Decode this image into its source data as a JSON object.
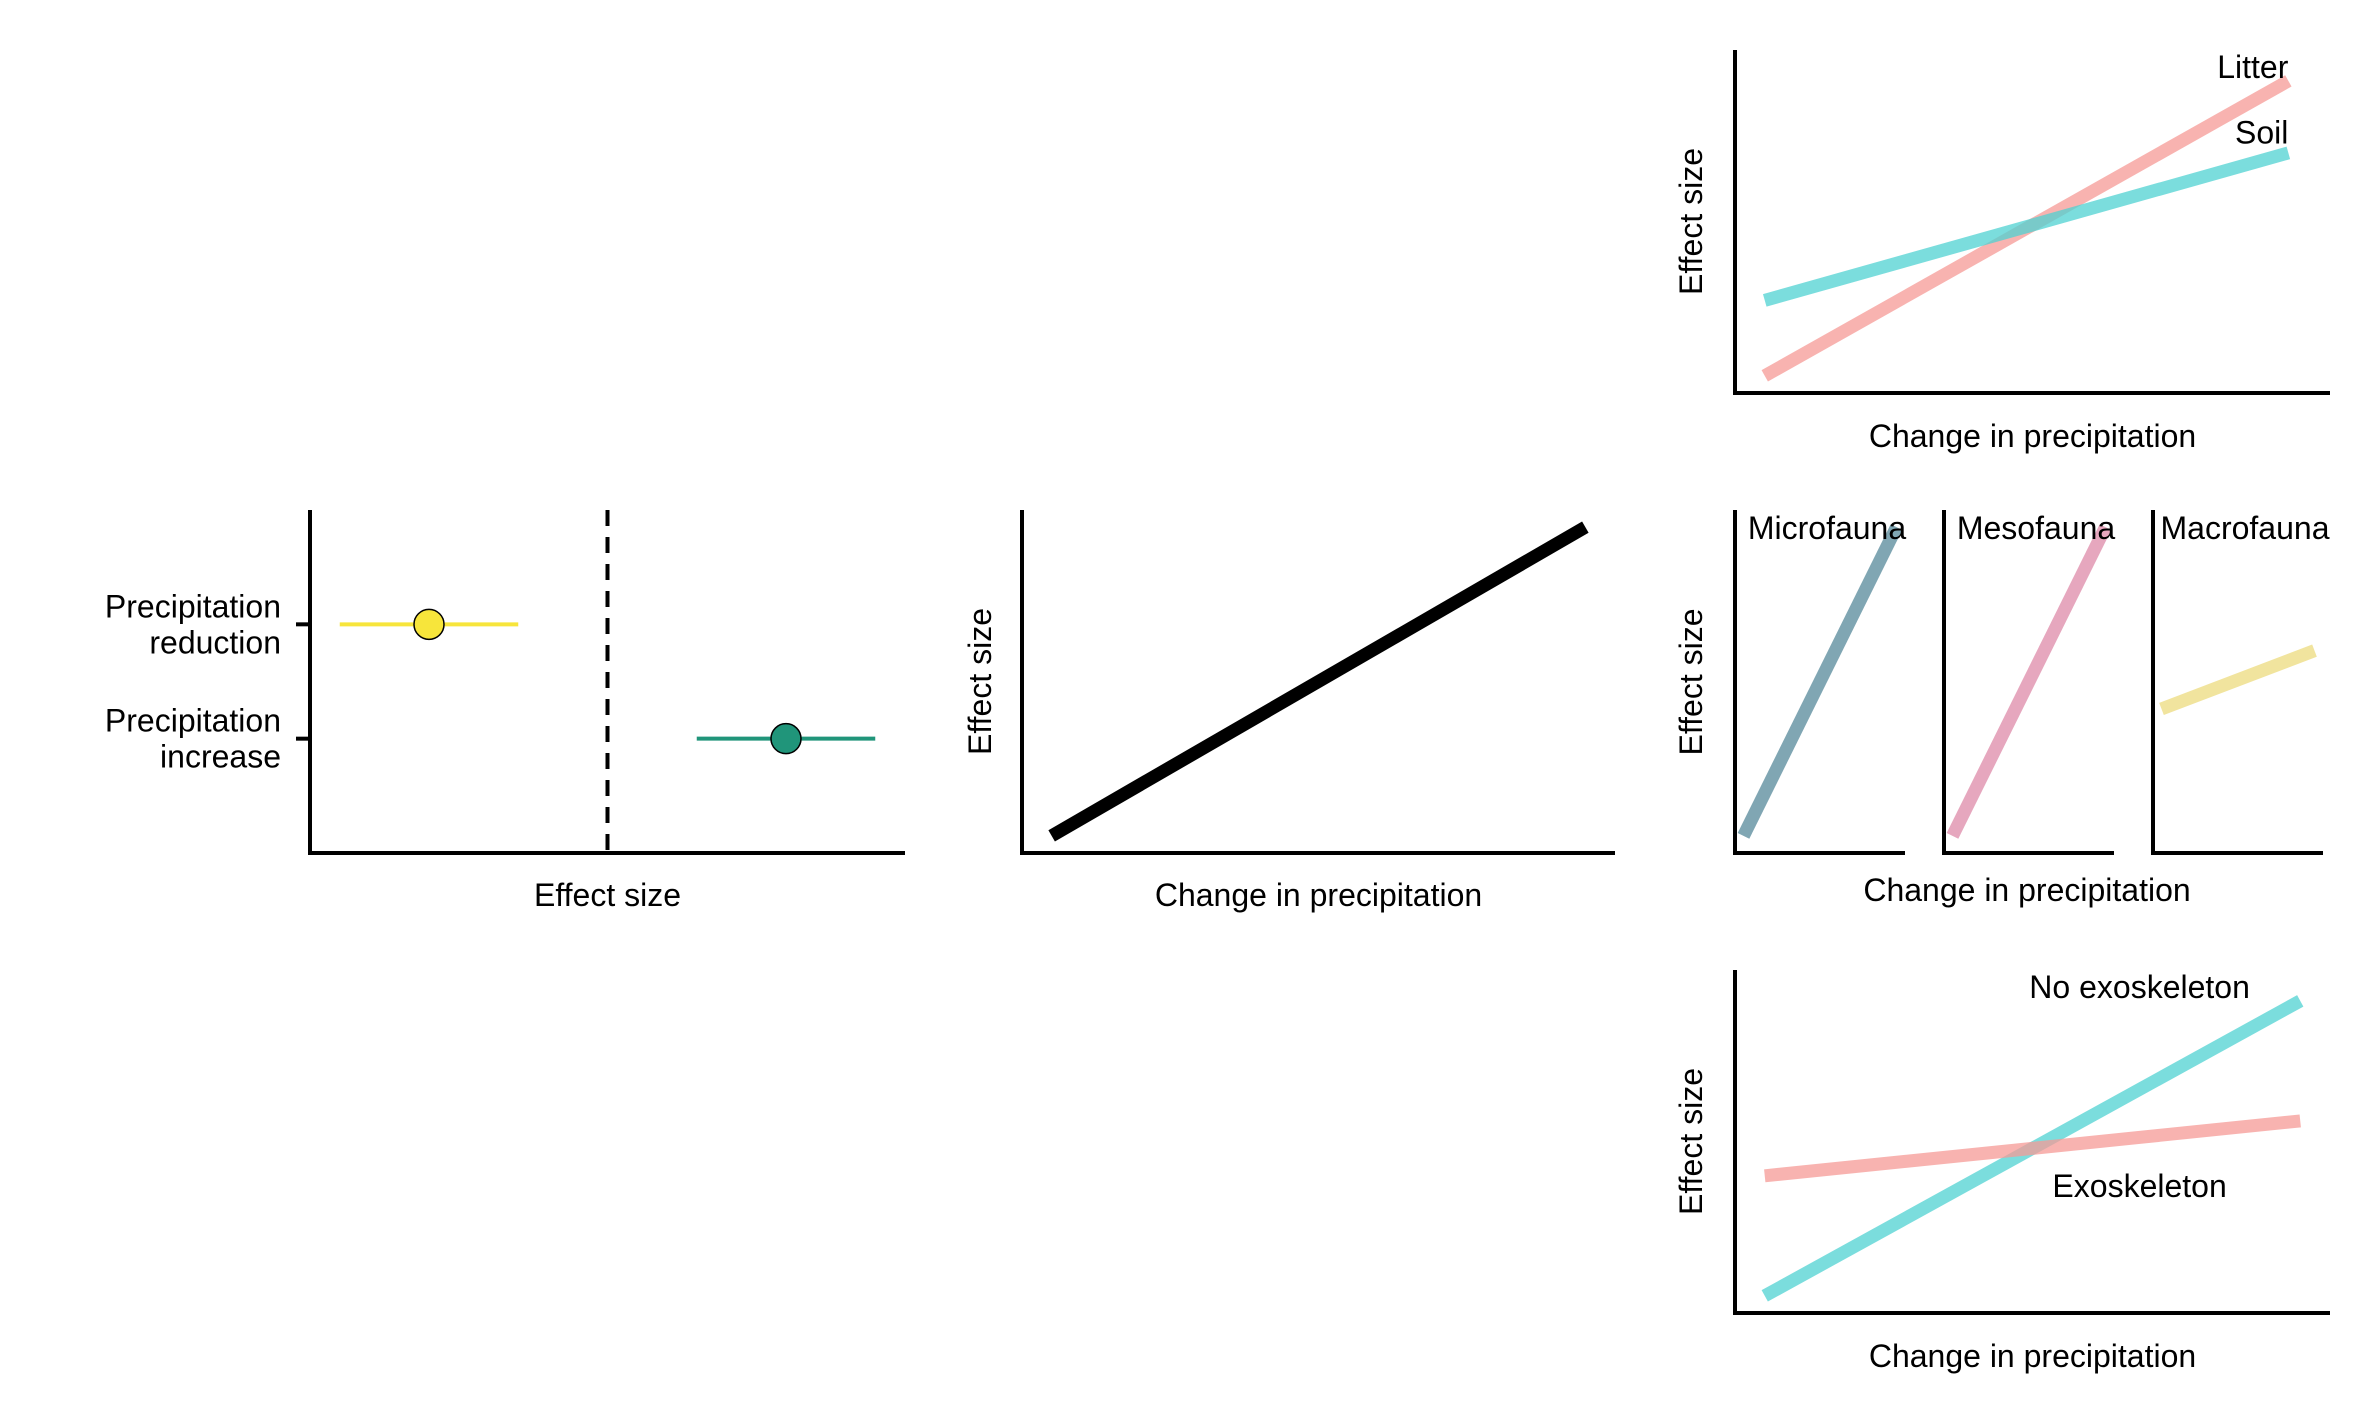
{
  "colors": {
    "axis": "#000000",
    "reduction": "#f7e53b",
    "increase": "#20957a",
    "litter": "#f59a95",
    "litter_text": "#ef6b63",
    "soil": "#4fd1d1",
    "soil_text": "#1fbcc4",
    "microfauna": "#2b6a80",
    "microfauna_text": "#16425b",
    "mesofauna": "#d66d93",
    "mesofauna_text": "#c8376b",
    "macrofauna": "#e8d25e",
    "macrofauna_text": "#e3bc12",
    "exo": "#f59a95",
    "exo_text": "#ef6b63",
    "noexo": "#4fd1d1",
    "noexo_text": "#1fbcc4"
  },
  "chart_data": [
    {
      "id": "forest",
      "type": "scatter",
      "title": "",
      "xlabel": "Effect size",
      "ylabel": "",
      "xlim": [
        -1,
        1
      ],
      "ylim": [
        0,
        3
      ],
      "reference_line": {
        "x": 0,
        "style": "dashed"
      },
      "categories": [
        "Precipitation reduction",
        "Precipitation increase"
      ],
      "tick_labels": [
        [
          "Precipitation",
          "reduction"
        ],
        [
          "Precipitation",
          "increase"
        ]
      ],
      "points": [
        {
          "category": "Precipitation reduction",
          "y": 2,
          "estimate": -0.6,
          "ci": [
            -0.9,
            -0.3
          ],
          "color": "#f7e53b"
        },
        {
          "category": "Precipitation increase",
          "y": 1,
          "estimate": 0.6,
          "ci": [
            0.3,
            0.9
          ],
          "color": "#20957a"
        }
      ]
    },
    {
      "id": "overall",
      "type": "line",
      "xlabel": "Change in precipitation",
      "ylabel": "Effect size",
      "xlim": [
        0,
        1
      ],
      "ylim": [
        0,
        1
      ],
      "series": [
        {
          "x": [
            0.05,
            0.95
          ],
          "y": [
            0.05,
            0.95
          ],
          "color": "#000000",
          "opacity": 1
        }
      ]
    },
    {
      "id": "habitat",
      "type": "line",
      "xlabel": "Change in precipitation",
      "ylabel": "Effect size",
      "xlim": [
        0,
        1
      ],
      "ylim": [
        0,
        1
      ],
      "series": [
        {
          "name": "Litter",
          "x": [
            0.05,
            0.93
          ],
          "y": [
            0.05,
            0.91
          ],
          "color": "#f59a95",
          "label_color": "#ef6b63",
          "label_pos": [
            0.93,
            0.95
          ],
          "label_anchor": "end"
        },
        {
          "name": "Soil",
          "x": [
            0.05,
            0.93
          ],
          "y": [
            0.27,
            0.7
          ],
          "color": "#4fd1d1",
          "label_color": "#1fbcc4",
          "label_pos": [
            0.93,
            0.76
          ],
          "label_anchor": "end"
        }
      ]
    },
    {
      "id": "bodysize",
      "type": "line",
      "xlabel": "Change in precipitation",
      "ylabel": "Effect size",
      "xlim": [
        0,
        1
      ],
      "ylim": [
        0,
        1
      ],
      "facets": [
        {
          "name": "Microfauna",
          "x": [
            0.05,
            0.95
          ],
          "y": [
            0.05,
            0.95
          ],
          "color": "#2b6a80",
          "label_color": "#16425b"
        },
        {
          "name": "Mesofauna",
          "x": [
            0.05,
            0.95
          ],
          "y": [
            0.05,
            0.95
          ],
          "color": "#d66d93",
          "label_color": "#c8376b"
        },
        {
          "name": "Macrofauna",
          "x": [
            0.05,
            0.95
          ],
          "y": [
            0.42,
            0.59
          ],
          "color": "#e8d25e",
          "label_color": "#e3bc12"
        }
      ]
    },
    {
      "id": "exoskeleton",
      "type": "line",
      "xlabel": "Change in precipitation",
      "ylabel": "Effect size",
      "xlim": [
        0,
        1
      ],
      "ylim": [
        0,
        1
      ],
      "series": [
        {
          "name": "No exoskeleton",
          "x": [
            0.05,
            0.95
          ],
          "y": [
            0.05,
            0.91
          ],
          "color": "#4fd1d1",
          "label_color": "#1fbcc4",
          "label_pos": [
            0.68,
            0.95
          ],
          "label_anchor": "middle"
        },
        {
          "name": "Exoskeleton",
          "x": [
            0.05,
            0.95
          ],
          "y": [
            0.4,
            0.56
          ],
          "color": "#f59a95",
          "label_color": "#ef6b63",
          "label_pos": [
            0.68,
            0.37
          ],
          "label_anchor": "middle"
        }
      ]
    }
  ]
}
